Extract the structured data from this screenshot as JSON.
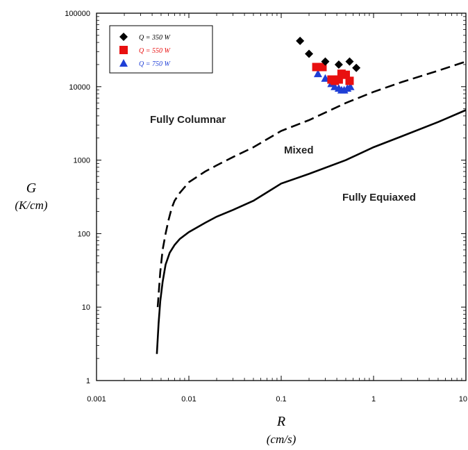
{
  "chart_data": {
    "type": "scatter",
    "x_scale": "log",
    "y_scale": "log",
    "xlim": [
      0.001,
      10
    ],
    "ylim": [
      1,
      100000
    ],
    "x_ticks": [
      "0.001",
      "0.01",
      "0.1",
      "1",
      "10"
    ],
    "y_ticks": [
      "1",
      "10",
      "100",
      "1000",
      "10000",
      "100000"
    ],
    "xlabel": "R",
    "xunit": "(cm/s)",
    "ylabel": "G",
    "yunit": "(K/cm)",
    "grid": false,
    "legend_position": "top-left",
    "regions": [
      "Fully Columnar",
      "Mixed",
      "Fully Equiaxed"
    ],
    "curves": [
      {
        "style": "solid",
        "color": "#000000",
        "x": [
          0.0045,
          0.0047,
          0.0049,
          0.0052,
          0.0056,
          0.0062,
          0.007,
          0.008,
          0.01,
          0.015,
          0.02,
          0.03,
          0.05,
          0.1,
          0.2,
          0.5,
          1,
          2,
          5,
          10
        ],
        "y": [
          2.3,
          6,
          12,
          22,
          38,
          55,
          70,
          85,
          105,
          140,
          170,
          210,
          280,
          480,
          650,
          1000,
          1500,
          2100,
          3300,
          4800
        ]
      },
      {
        "style": "dashed",
        "color": "#000000",
        "x": [
          0.0046,
          0.0049,
          0.0052,
          0.0056,
          0.006,
          0.0065,
          0.007,
          0.008,
          0.01,
          0.015,
          0.02,
          0.03,
          0.05,
          0.1,
          0.2,
          0.5,
          1,
          2,
          5,
          10
        ],
        "y": [
          10,
          30,
          60,
          100,
          150,
          220,
          280,
          360,
          500,
          700,
          850,
          1100,
          1500,
          2500,
          3500,
          6000,
          8500,
          11500,
          16500,
          22000
        ]
      }
    ],
    "series": [
      {
        "name": "Q = 350 W",
        "marker": "diamond",
        "color": "#000000",
        "x": [
          0.16,
          0.2,
          0.3,
          0.42,
          0.55,
          0.65
        ],
        "y": [
          42000,
          28000,
          22000,
          20000,
          22000,
          18000
        ]
      },
      {
        "name": "Q = 550 W",
        "marker": "square",
        "color": "#e81010",
        "x": [
          0.24,
          0.28,
          0.35,
          0.38,
          0.42,
          0.45,
          0.5,
          0.55
        ],
        "y": [
          18500,
          18500,
          12500,
          12000,
          12500,
          15000,
          14500,
          12000
        ]
      },
      {
        "name": "Q = 750 W",
        "marker": "triangle",
        "color": "#1f3fd6",
        "x": [
          0.25,
          0.3,
          0.35,
          0.38,
          0.42,
          0.45,
          0.48,
          0.52,
          0.56
        ],
        "y": [
          15000,
          13000,
          11000,
          10000,
          9500,
          9000,
          9000,
          9500,
          10000
        ]
      }
    ]
  }
}
